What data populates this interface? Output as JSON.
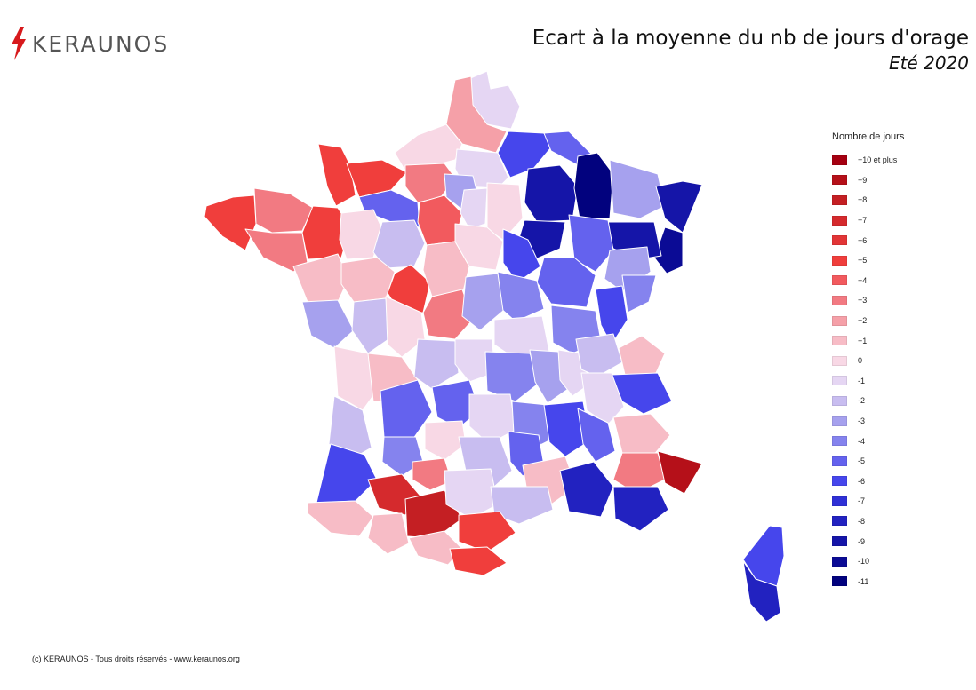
{
  "brand": {
    "name": "KERAUNOS"
  },
  "title": {
    "main": "Ecart à la moyenne du nb de jours d'orage",
    "sub": "Eté 2020"
  },
  "legend": {
    "title": "Nombre de jours",
    "items": [
      {
        "label": "+10 et plus",
        "color": "#a50011"
      },
      {
        "label": "+9",
        "color": "#b51019"
      },
      {
        "label": "+8",
        "color": "#c41f23"
      },
      {
        "label": "+7",
        "color": "#d52a2d"
      },
      {
        "label": "+6",
        "color": "#e23536"
      },
      {
        "label": "+5",
        "color": "#f03e3c"
      },
      {
        "label": "+4",
        "color": "#f25a5e"
      },
      {
        "label": "+3",
        "color": "#f27a82"
      },
      {
        "label": "+2",
        "color": "#f5a0a8"
      },
      {
        "label": "+1",
        "color": "#f7bcc6"
      },
      {
        "label": "0",
        "color": "#f8d8e5"
      },
      {
        "label": "-1",
        "color": "#e5d6f3"
      },
      {
        "label": "-2",
        "color": "#c8bdf0"
      },
      {
        "label": "-3",
        "color": "#a6a1ee"
      },
      {
        "label": "-4",
        "color": "#8583ee"
      },
      {
        "label": "-5",
        "color": "#6462ee"
      },
      {
        "label": "-6",
        "color": "#4646ec"
      },
      {
        "label": "-7",
        "color": "#2f30d6"
      },
      {
        "label": "-8",
        "color": "#2222c0"
      },
      {
        "label": "-9",
        "color": "#1515a8"
      },
      {
        "label": "-10",
        "color": "#0b0b95"
      },
      {
        "label": "-11",
        "color": "#02027e"
      }
    ]
  },
  "footer": "(c) KERAUNOS - Tous droits réservés - www.keraunos.org"
}
